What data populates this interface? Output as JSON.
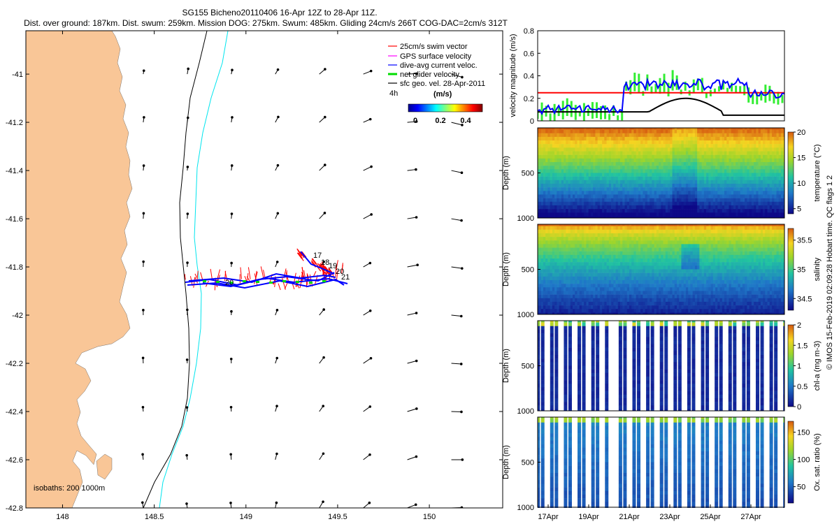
{
  "figure": {
    "title_line1": "SG155 Bicheno20110406 16-Apr 12Z to 28-Apr 11Z.",
    "title_line2": "Dist. over ground: 187km. Dist. swum: 259km. Mission DOG: 275km. Swum: 485km. Gliding 24cm/s 266T COG-DAC=2cm/s 312T",
    "credit": "© IMOS 15-Feb-2019 02:09:28 Hobart time. QC flags 1  2",
    "colors": {
      "land": "#f9c697",
      "swim": "#ff0000",
      "gps": "#ff00ff",
      "dac": "#0000ff",
      "net": "#00dd00",
      "geo": "#000000",
      "isobath200": "#000000",
      "isobath1000": "#00e5ee"
    }
  },
  "chart_data": [
    {
      "id": "map",
      "type": "quiver-map",
      "x_ticks": [
        "148",
        "148.5",
        "149",
        "149.5",
        "150"
      ],
      "x_values": [
        148,
        148.5,
        149,
        149.5,
        150
      ],
      "y_ticks": [
        "-41",
        "-41.2",
        "-41.4",
        "-41.6",
        "-41.8",
        "-42",
        "-42.2",
        "-42.4",
        "-42.6",
        "-42.8"
      ],
      "y_values": [
        -41,
        -41.2,
        -41.4,
        -41.6,
        -41.8,
        -42,
        -42.2,
        -42.4,
        -42.6,
        -42.8
      ],
      "xlim": [
        147.8,
        150.4
      ],
      "ylim": [
        -42.8,
        -40.82
      ],
      "legend": {
        "items": [
          "25cm/s swim vector",
          "GPS surface velocity",
          "dive-avg current veloc.",
          "net glider velocity",
          "sfc geo. vel. 28-Apr-2011"
        ],
        "interval_label": "4h",
        "units_label": "(m/s)",
        "colorbar_ticks": [
          "0",
          "0.2",
          "0.4"
        ]
      },
      "isobath_label": "isobaths:  200  1000m",
      "track_labels": [
        "17",
        "18",
        "19",
        "20",
        "21",
        "20"
      ]
    },
    {
      "id": "velocity",
      "type": "line",
      "ylabel": "velocity magnitude (m/s)",
      "ylim": [
        0,
        0.8
      ],
      "y_ticks": [
        "0",
        "0.2",
        "0.4",
        "0.6",
        "0.8"
      ],
      "reference_line": 0.25
    },
    {
      "id": "temperature",
      "type": "heatmap",
      "ylabel": "Depth (m)",
      "y_ticks": [
        "500",
        "1000"
      ],
      "colorbar_label": "temperature (°C)",
      "colorbar_ticks": [
        "20",
        "15",
        "10",
        "5"
      ],
      "colorbar_range": [
        4,
        20
      ]
    },
    {
      "id": "salinity",
      "type": "heatmap",
      "ylabel": "Depth (m)",
      "y_ticks": [
        "500",
        "1000"
      ],
      "colorbar_label": "salinity",
      "colorbar_ticks": [
        "35.5",
        "35",
        "34.5"
      ],
      "colorbar_range": [
        34.3,
        35.7
      ]
    },
    {
      "id": "chla",
      "type": "heatmap",
      "ylabel": "Depth (m)",
      "y_ticks": [
        "500",
        "1000"
      ],
      "colorbar_label": "chl-a (mg m-3)",
      "colorbar_ticks": [
        "2",
        "1.5",
        "1",
        "0.5",
        "0"
      ],
      "colorbar_range": [
        0,
        2
      ]
    },
    {
      "id": "oxygen",
      "type": "heatmap",
      "ylabel": "Depth (m)",
      "y_ticks": [
        "500",
        "1000"
      ],
      "colorbar_label": "Ox. sat. ratio (%)",
      "colorbar_ticks": [
        "150",
        "100",
        "50"
      ],
      "colorbar_range": [
        20,
        170
      ],
      "x_ticks": [
        "17Apr",
        "19Apr",
        "21Apr",
        "23Apr",
        "25Apr",
        "27Apr"
      ]
    }
  ]
}
